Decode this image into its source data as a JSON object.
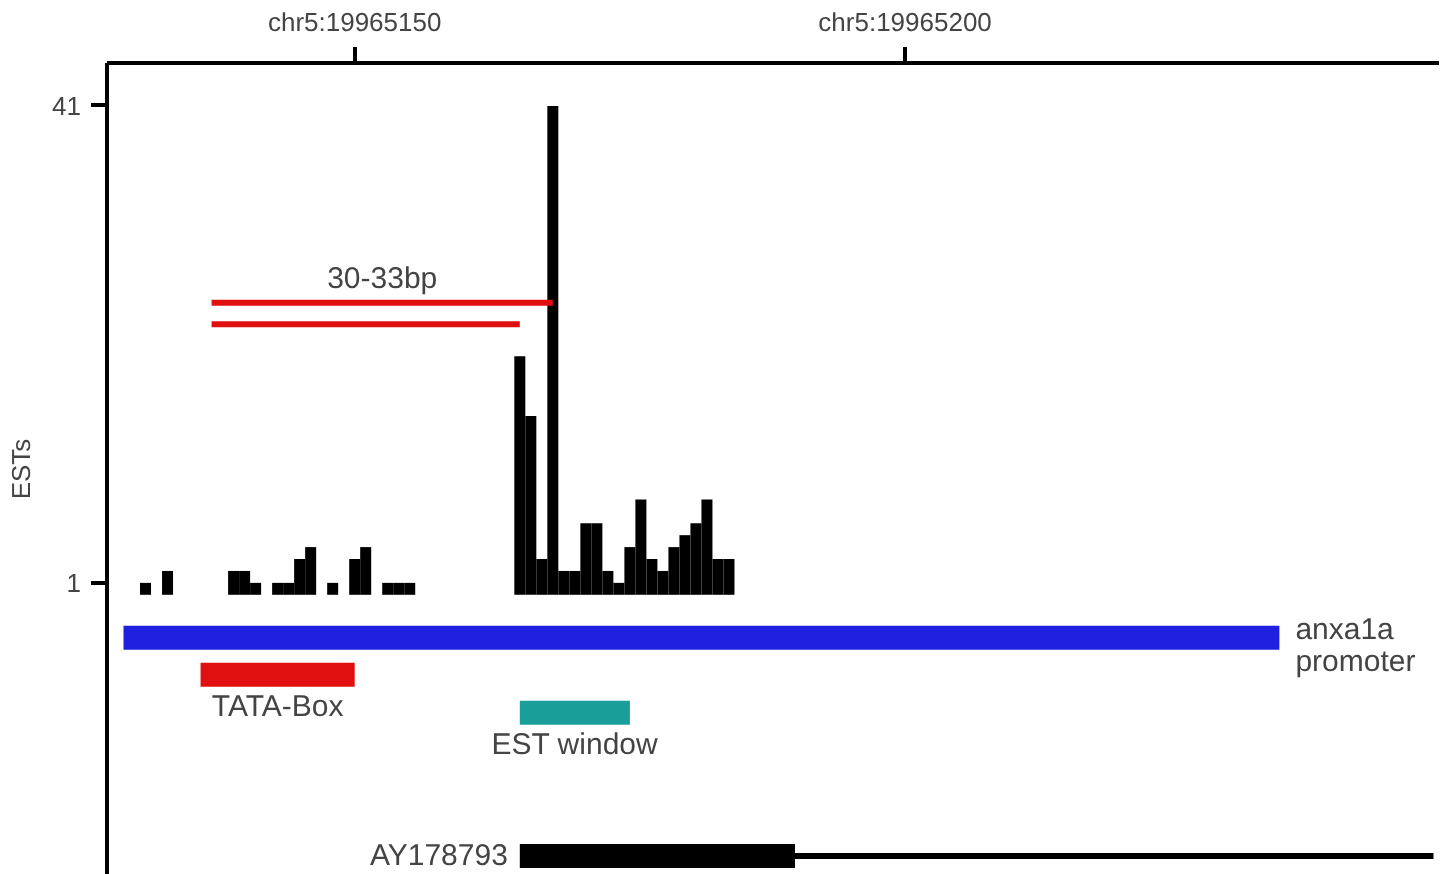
{
  "chart_data": {
    "type": "bar",
    "ylabel": "ESTs",
    "ylim": [
      -23.5,
      44.6
    ],
    "yticks": [
      1,
      41
    ],
    "grid": false,
    "categories": [
      null,
      null,
      null,
      null,
      null,
      null,
      null,
      null,
      null,
      null,
      null,
      null,
      null,
      null,
      null,
      null,
      null,
      null,
      null,
      null,
      null,
      null,
      "chr5:19965150",
      null,
      null,
      null,
      null,
      null,
      null,
      null,
      null,
      null,
      null,
      null,
      null,
      null,
      null,
      null,
      null,
      null,
      null,
      null,
      null,
      null,
      null,
      null,
      null,
      null,
      null,
      null,
      null,
      null,
      null,
      null,
      null,
      null,
      null,
      null,
      null,
      null,
      null,
      null,
      null,
      null,
      null,
      null,
      null,
      null,
      null,
      null,
      null,
      null,
      "chr5:19965200",
      null,
      null,
      null,
      null,
      null,
      null,
      null,
      null,
      null,
      null,
      null,
      null,
      null,
      null,
      null,
      null,
      null,
      null,
      null,
      null,
      null,
      null,
      null,
      null,
      null,
      null,
      null,
      null,
      null,
      null,
      null,
      null,
      null,
      null,
      null,
      null,
      null,
      null,
      null,
      null,
      null,
      null,
      null,
      null,
      null,
      null,
      null,
      null
    ],
    "annotations": [
      "30-33bp"
    ],
    "series": [
      {
        "color": "#000000",
        "values": [
          null,
          null,
          null,
          1,
          null,
          2,
          null,
          null,
          null,
          null,
          null,
          2,
          2,
          1,
          null,
          1,
          1,
          3,
          4,
          null,
          1,
          null,
          3,
          4,
          null,
          1,
          1,
          1,
          null,
          null,
          null,
          null,
          null,
          null,
          null,
          null,
          null,
          20,
          15,
          3,
          41,
          2,
          2,
          6,
          6,
          2,
          1,
          4,
          8,
          3,
          2,
          4,
          5,
          6,
          8,
          3,
          3,
          null,
          null,
          null,
          null,
          null,
          null,
          null,
          null,
          null,
          null,
          null,
          null,
          null,
          null,
          null,
          null,
          null,
          null,
          null,
          null,
          null,
          null,
          null,
          null,
          null,
          null,
          null,
          null,
          null,
          null,
          null,
          null,
          null,
          null,
          null,
          null,
          null,
          null,
          null,
          null,
          null,
          null,
          null,
          null,
          null,
          null,
          null,
          null,
          null,
          null,
          null,
          null,
          null,
          null,
          null,
          null,
          null,
          null,
          null,
          null,
          null,
          null,
          null,
          null
        ]
      },
      {
        "type": "line",
        "color": "#e01010",
        "values": [
          null,
          null,
          null,
          null,
          null,
          null,
          null,
          null,
          null,
          24.5,
          24.5,
          24.5,
          24.5,
          24.5,
          24.5,
          24.5,
          24.5,
          24.5,
          24.5,
          24.5,
          24.5,
          24.5,
          24.5,
          24.5,
          24.5,
          24.5,
          24.5,
          24.5,
          24.5,
          24.5,
          24.5,
          24.5,
          24.5,
          24.5,
          24.5,
          24.5,
          24.5,
          24.5,
          24.5,
          24.5,
          24.5,
          null,
          null,
          null,
          null,
          null,
          null,
          null,
          null,
          null,
          null,
          null,
          null,
          null,
          null,
          null,
          null,
          null,
          null,
          null,
          null,
          null,
          null,
          null,
          null,
          null,
          null,
          null,
          null,
          null,
          null,
          null,
          null,
          null,
          null,
          null,
          null,
          null,
          null,
          null,
          null,
          null,
          null,
          null,
          null,
          null,
          null,
          null,
          null,
          null,
          null,
          null,
          null,
          null,
          null,
          null,
          null,
          null,
          null,
          null,
          null,
          null,
          null,
          null,
          null,
          null,
          null,
          null,
          null,
          null,
          null,
          null,
          null,
          null,
          null,
          null,
          null,
          null,
          null,
          null,
          null
        ]
      },
      {
        "type": "line",
        "color": "#e01010",
        "values": [
          null,
          null,
          null,
          null,
          null,
          null,
          null,
          null,
          null,
          22.7,
          22.7,
          22.7,
          22.7,
          22.7,
          22.7,
          22.7,
          22.7,
          22.7,
          22.7,
          22.7,
          22.7,
          22.7,
          22.7,
          22.7,
          22.7,
          22.7,
          22.7,
          22.7,
          22.7,
          22.7,
          22.7,
          22.7,
          22.7,
          22.7,
          22.7,
          22.7,
          22.7,
          22.7,
          null,
          null,
          null,
          null,
          null,
          null,
          null,
          null,
          null,
          null,
          null,
          null,
          null,
          null,
          null,
          null,
          null,
          null,
          null,
          null,
          null,
          null,
          null,
          null,
          null,
          null,
          null,
          null,
          null,
          null,
          null,
          null,
          null,
          null,
          null,
          null,
          null,
          null,
          null,
          null,
          null,
          null,
          null,
          null,
          null,
          null,
          null,
          null,
          null,
          null,
          null,
          null,
          null,
          null,
          null,
          null,
          null,
          null,
          null,
          null,
          null,
          null,
          null,
          null,
          null,
          null,
          null,
          null,
          null,
          null,
          null,
          null,
          null,
          null,
          null,
          null,
          null,
          null,
          null,
          null,
          null,
          null,
          null
        ]
      },
      {
        "type": "line",
        "name": "anxa1a promoter",
        "color": "#2020e0",
        "values": [
          null,
          -3.6,
          -3.6,
          -3.6,
          -3.6,
          -3.6,
          -3.6,
          -3.6,
          -3.6,
          -3.6,
          -3.6,
          -3.6,
          -3.6,
          -3.6,
          -3.6,
          -3.6,
          -3.6,
          -3.6,
          -3.6,
          -3.6,
          -3.6,
          -3.6,
          -3.6,
          -3.6,
          -3.6,
          -3.6,
          -3.6,
          -3.6,
          -3.6,
          -3.6,
          -3.6,
          -3.6,
          -3.6,
          -3.6,
          -3.6,
          -3.6,
          -3.6,
          -3.6,
          -3.6,
          -3.6,
          -3.6,
          -3.6,
          -3.6,
          -3.6,
          -3.6,
          -3.6,
          -3.6,
          -3.6,
          -3.6,
          -3.6,
          -3.6,
          -3.6,
          -3.6,
          -3.6,
          -3.6,
          -3.6,
          -3.6,
          -3.6,
          -3.6,
          -3.6,
          -3.6,
          -3.6,
          -3.6,
          -3.6,
          -3.6,
          -3.6,
          -3.6,
          -3.6,
          -3.6,
          -3.6,
          -3.6,
          -3.6,
          -3.6,
          -3.6,
          -3.6,
          -3.6,
          -3.6,
          -3.6,
          -3.6,
          -3.6,
          -3.6,
          -3.6,
          -3.6,
          -3.6,
          -3.6,
          -3.6,
          -3.6,
          -3.6,
          -3.6,
          -3.6,
          -3.6,
          -3.6,
          -3.6,
          -3.6,
          -3.6,
          -3.6,
          -3.6,
          -3.6,
          -3.6,
          -3.6,
          -3.6,
          -3.6,
          -3.6,
          -3.6,
          -3.6,
          -3.6,
          -3.6,
          null,
          null,
          null,
          null,
          null,
          null,
          null,
          null,
          null,
          null,
          null,
          null,
          null,
          null
        ]
      },
      {
        "type": "line",
        "name": "TATA-Box",
        "color": "#e01010",
        "values": [
          null,
          null,
          null,
          null,
          null,
          null,
          null,
          null,
          -6.7,
          -6.7,
          -6.7,
          -6.7,
          -6.7,
          -6.7,
          -6.7,
          -6.7,
          -6.7,
          -6.7,
          -6.7,
          -6.7,
          -6.7,
          -6.7,
          -6.7,
          null,
          null,
          null,
          null,
          null,
          null,
          null,
          null,
          null,
          null,
          null,
          null,
          null,
          null,
          null,
          null,
          null,
          null,
          null,
          null,
          null,
          null,
          null,
          null,
          null,
          null,
          null,
          null,
          null,
          null,
          null,
          null,
          null,
          null,
          null,
          null,
          null,
          null,
          null,
          null,
          null,
          null,
          null,
          null,
          null,
          null,
          null,
          null,
          null,
          null,
          null,
          null,
          null,
          null,
          null,
          null,
          null,
          null,
          null,
          null,
          null,
          null,
          null,
          null,
          null,
          null,
          null,
          null,
          null,
          null,
          null,
          null,
          null,
          null,
          null,
          null,
          null,
          null,
          null,
          null,
          null,
          null,
          null,
          null,
          null,
          null,
          null,
          null,
          null,
          null,
          null,
          null,
          null,
          null,
          null,
          null,
          null,
          null
        ]
      },
      {
        "type": "line",
        "name": "EST window",
        "color": "#1a9e9a",
        "values": [
          null,
          null,
          null,
          null,
          null,
          null,
          null,
          null,
          null,
          null,
          null,
          null,
          null,
          null,
          null,
          null,
          null,
          null,
          null,
          null,
          null,
          null,
          null,
          null,
          null,
          null,
          null,
          null,
          null,
          null,
          null,
          null,
          null,
          null,
          null,
          null,
          null,
          -9.9,
          -9.9,
          -9.9,
          -9.9,
          -9.9,
          -9.9,
          -9.9,
          -9.9,
          -9.9,
          -9.9,
          -9.9,
          null,
          null,
          null,
          null,
          null,
          null,
          null,
          null,
          null,
          null,
          null,
          null,
          null,
          null,
          null,
          null,
          null,
          null,
          null,
          null,
          null,
          null,
          null,
          null,
          null,
          null,
          null,
          null,
          null,
          null,
          null,
          null,
          null,
          null,
          null,
          null,
          null,
          null,
          null,
          null,
          null,
          null,
          null,
          null,
          null,
          null,
          null,
          null,
          null,
          null,
          null,
          null,
          null,
          null,
          null,
          null,
          null,
          null,
          null,
          null,
          null,
          null,
          null,
          null,
          null,
          null,
          null,
          null,
          null,
          null,
          null,
          null,
          null
        ]
      },
      {
        "type": "line",
        "name": "AY178793",
        "color": "#000000",
        "values": [
          null,
          null,
          null,
          null,
          null,
          null,
          null,
          null,
          null,
          null,
          null,
          null,
          null,
          null,
          null,
          null,
          null,
          null,
          null,
          null,
          null,
          null,
          null,
          null,
          null,
          null,
          null,
          null,
          null,
          null,
          null,
          null,
          null,
          null,
          null,
          null,
          null,
          -21.9,
          -21.9,
          -21.9,
          -21.9,
          -21.9,
          -21.9,
          -21.9,
          -21.9,
          -21.9,
          -21.9,
          -21.9,
          -21.9,
          -21.9,
          -21.9,
          -21.9,
          -21.9,
          -21.9,
          -21.9,
          -21.9,
          -21.9,
          -21.9,
          -21.9,
          -21.9,
          -21.9,
          -21.9,
          -21.9,
          null,
          null,
          null,
          null,
          null,
          null,
          null,
          null,
          null,
          null,
          null,
          null,
          null,
          null,
          null,
          null,
          null,
          null,
          null,
          null,
          null,
          null,
          null,
          null,
          null,
          null,
          null,
          null,
          null,
          null,
          null,
          null,
          null,
          null,
          null,
          null,
          null,
          null,
          null,
          null,
          null,
          null,
          null,
          null,
          null,
          null,
          null,
          null,
          null,
          null,
          null,
          null,
          null,
          null,
          null,
          null,
          null,
          null
        ]
      },
      {
        "type": "line",
        "color": "#000000",
        "values": [
          null,
          null,
          null,
          null,
          null,
          null,
          null,
          null,
          null,
          null,
          null,
          null,
          null,
          null,
          null,
          null,
          null,
          null,
          null,
          null,
          null,
          null,
          null,
          null,
          null,
          null,
          null,
          null,
          null,
          null,
          null,
          null,
          null,
          null,
          null,
          null,
          null,
          null,
          null,
          null,
          null,
          null,
          null,
          null,
          null,
          null,
          null,
          null,
          null,
          null,
          null,
          null,
          null,
          null,
          null,
          null,
          null,
          null,
          null,
          null,
          null,
          null,
          -21.9,
          -21.9,
          -21.9,
          -21.9,
          -21.9,
          -21.9,
          -21.9,
          -21.9,
          -21.9,
          -21.9,
          -21.9,
          -21.9,
          -21.9,
          -21.9,
          -21.9,
          -21.9,
          -21.9,
          -21.9,
          -21.9,
          -21.9,
          -21.9,
          -21.9,
          -21.9,
          -21.9,
          -21.9,
          -21.9,
          -21.9,
          -21.9,
          -21.9,
          -21.9,
          -21.9,
          -21.9,
          -21.9,
          -21.9,
          -21.9,
          -21.9,
          -21.9,
          -21.9,
          -21.9,
          -21.9,
          -21.9,
          -21.9,
          -21.9,
          -21.9,
          -21.9,
          -21.9,
          -21.9,
          -21.9,
          -21.9,
          -21.9,
          -21.9,
          -21.9,
          -21.9,
          -21.9,
          -21.9,
          -21.9,
          -21.9,
          -21.9,
          -21.9
        ]
      }
    ]
  }
}
